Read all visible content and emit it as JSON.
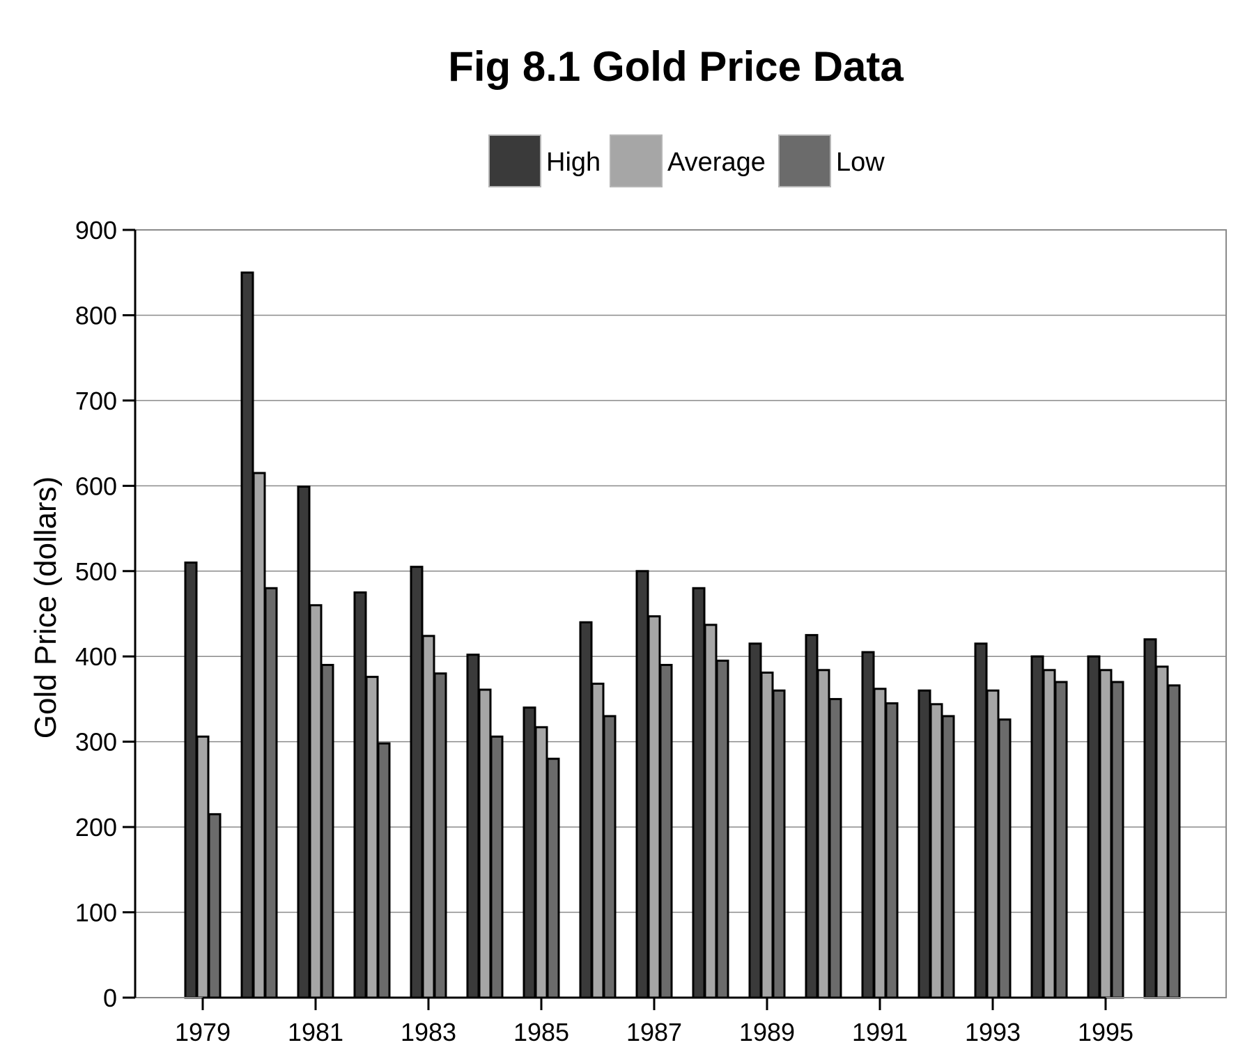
{
  "chart_data": {
    "type": "bar",
    "title": "Fig 8.1 Gold Price Data",
    "xlabel": "",
    "ylabel": "Gold Price (dollars)",
    "ylim": [
      0,
      900
    ],
    "yticks": [
      0,
      100,
      200,
      300,
      400,
      500,
      600,
      700,
      800,
      900
    ],
    "categories": [
      1979,
      1980,
      1981,
      1982,
      1983,
      1984,
      1985,
      1986,
      1987,
      1988,
      1989,
      1990,
      1991,
      1992,
      1993,
      1994,
      1995,
      1996
    ],
    "xtick_labels": [
      "1979",
      "1981",
      "1983",
      "1985",
      "1987",
      "1989",
      "1991",
      "1993",
      "1995"
    ],
    "grid": true,
    "legend_position": "top-center",
    "series": [
      {
        "name": "High",
        "color": "#3a3a3a",
        "values": [
          510,
          850,
          599,
          475,
          505,
          402,
          340,
          440,
          500,
          480,
          415,
          425,
          405,
          360,
          415,
          400,
          400,
          420
        ]
      },
      {
        "name": "Average",
        "color": "#a6a6a6",
        "values": [
          306,
          615,
          460,
          376,
          424,
          361,
          317,
          368,
          447,
          437,
          381,
          384,
          362,
          344,
          360,
          384,
          384,
          388
        ]
      },
      {
        "name": "Low",
        "color": "#6b6b6b",
        "values": [
          215,
          480,
          390,
          298,
          380,
          306,
          280,
          330,
          390,
          395,
          360,
          350,
          345,
          330,
          326,
          370,
          370,
          366
        ]
      }
    ]
  }
}
